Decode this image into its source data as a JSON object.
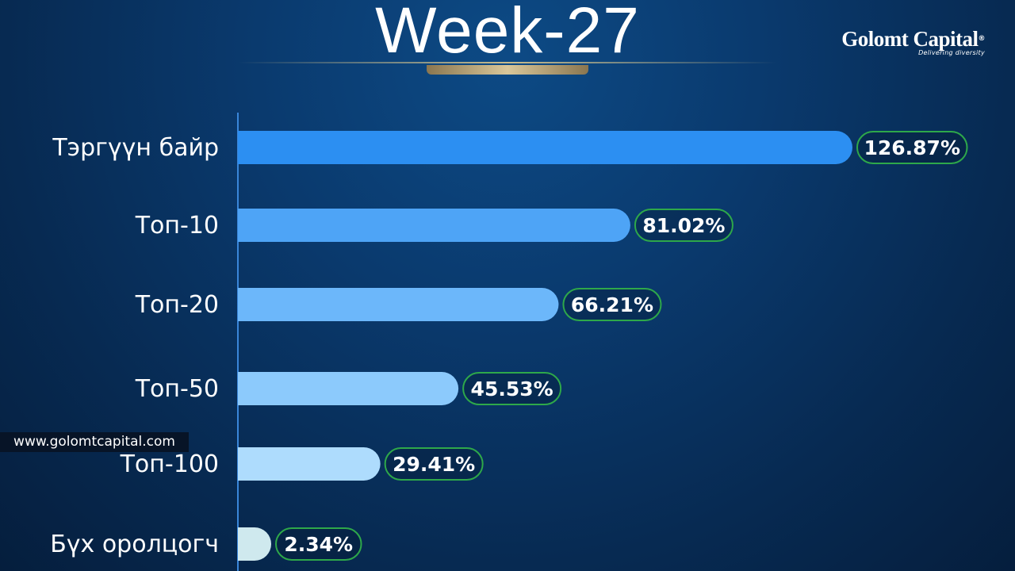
{
  "header": {
    "title": "Week-27"
  },
  "brand": {
    "name": "Golomt Capital",
    "registered": "®",
    "tagline": "Delivering diversity"
  },
  "footer": {
    "website": "www.golomtcapital.com"
  },
  "colors": {
    "bar_shades": [
      "#2c8ff2",
      "#4ea4f6",
      "#6cb7fa",
      "#8ccafc",
      "#aedcfd",
      "#cfe9ee"
    ],
    "pill_border": "#2ea84a",
    "axis": "#3a86d9"
  },
  "chart_data": {
    "type": "bar",
    "orientation": "horizontal",
    "title": "Week-27",
    "categories": [
      "Тэргүүн байр",
      "Топ-10",
      "Топ-20",
      "Топ-50",
      "Топ-100",
      "Бүх оролцогч"
    ],
    "values": [
      126.87,
      81.02,
      66.21,
      45.53,
      29.41,
      2.34
    ],
    "value_labels": [
      "126.87%",
      "81.02%",
      "66.21%",
      "45.53%",
      "29.41%",
      "2.34%"
    ],
    "xlim": [
      0,
      126.87
    ],
    "grid": false,
    "legend": "none"
  }
}
